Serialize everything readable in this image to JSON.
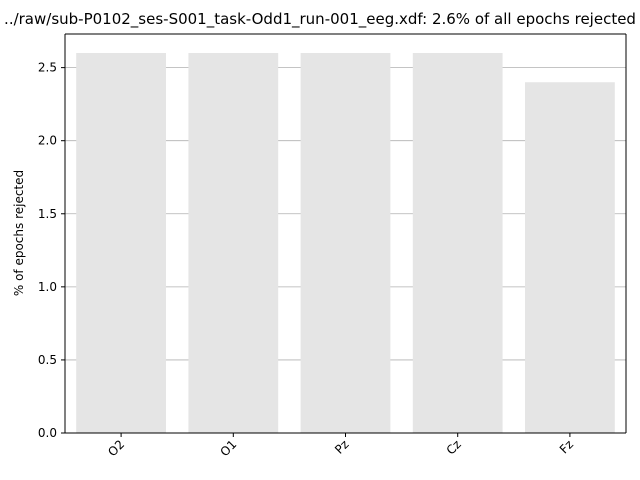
{
  "chart_data": {
    "type": "bar",
    "title": "../raw/sub-P0102_ses-S001_task-Odd1_run-001_eeg.xdf: 2.6% of all epochs rejected",
    "xlabel": "",
    "ylabel": "% of epochs rejected",
    "categories": [
      "O2",
      "O1",
      "Pz",
      "Cz",
      "Fz"
    ],
    "values": [
      2.6,
      2.6,
      2.6,
      2.6,
      2.4
    ],
    "ylim": [
      0,
      2.73
    ],
    "yticks": [
      "0.0",
      "0.5",
      "1.0",
      "1.5",
      "2.0",
      "2.5"
    ],
    "grid": "y",
    "colors": {
      "bar": "#e5e5e5",
      "grid": "#b0b0b0",
      "axis": "#000000"
    }
  }
}
